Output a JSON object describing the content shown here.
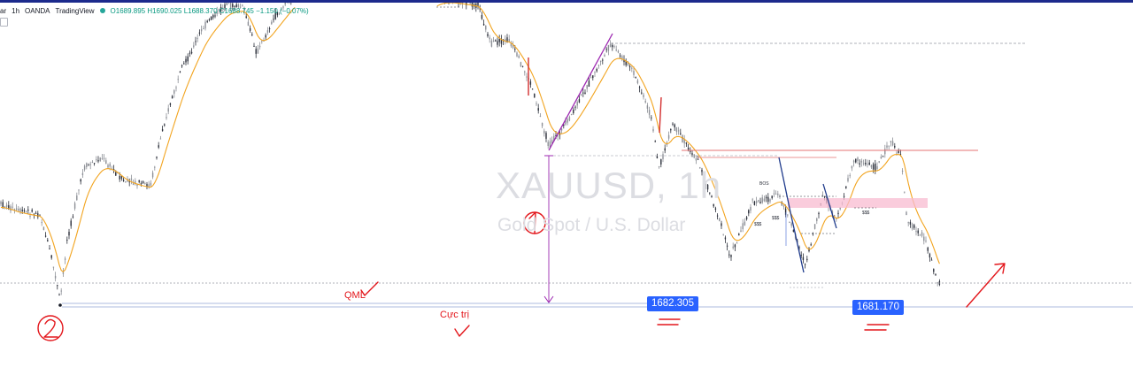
{
  "legend": {
    "symbol_fragment": "ar",
    "interval": "1h",
    "broker": "OANDA",
    "platform": "TradingView",
    "ohlc": "O1689.895 H1690.025 L1688.370 C1688.745 −1.150 (−0.07%)"
  },
  "watermark": {
    "symbol": "XAUUSD, 1h",
    "description": "Gold Spot / U.S. Dollar"
  },
  "price_labels": [
    {
      "text": "1682.305",
      "value": 1682.305
    },
    {
      "text": "1681.170",
      "value": 1681.17
    }
  ],
  "annotations": {
    "qml": "QML",
    "extreme": "Cực trị",
    "bos": "BOS",
    "liquidity": "$$$",
    "circle_one": "1",
    "circle_two": "2"
  },
  "colors": {
    "bull_candle": "#8c8f96",
    "bear_candle": "#2a2e39",
    "ema": "#f2a41f",
    "purple_line": "#9c27b0",
    "red_level": "#e57373",
    "pink_zone": "#f8bbd0",
    "blue_label": "#2962ff",
    "handwriting": "#e3161b",
    "navy_swing": "#1f3b8c"
  },
  "chart_data": {
    "type": "candlestick",
    "symbol": "XAUUSD",
    "interval": "1h",
    "last_ohlc": {
      "open": 1689.895,
      "high": 1690.025,
      "low": 1688.37,
      "close": 1688.745,
      "change": -1.15,
      "change_pct": -0.07
    },
    "levels": [
      1682.305,
      1681.17
    ]
  }
}
